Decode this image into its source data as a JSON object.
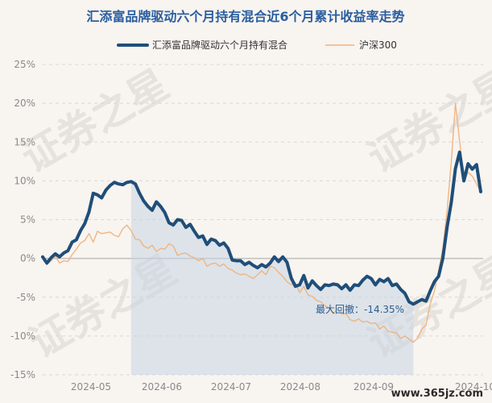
{
  "chart_data": {
    "type": "line",
    "title": "汇添富品牌驱动六个月持有混合近6个月累计收益率走势",
    "x_tick_labels": [
      "2024-05",
      "2024-06",
      "2024-07",
      "2024-08",
      "2024-09",
      "2024-10"
    ],
    "y_tick_labels": [
      "25%",
      "20%",
      "15%",
      "10%",
      "5%",
      "0%",
      "-5%",
      "-10%",
      "-15%"
    ],
    "ylim": [
      -15,
      25
    ],
    "grid": true,
    "legend_position": "top-center",
    "annotation": "最大回撤：-14.35%",
    "series": [
      {
        "name": "汇添富品牌驱动六个月持有混合",
        "color": "#1f4e79",
        "values": [
          0.2,
          -0.6,
          0.1,
          0.6,
          0.2,
          0.7,
          1.0,
          2.1,
          2.4,
          3.6,
          4.5,
          6.0,
          8.4,
          8.2,
          7.8,
          8.8,
          9.4,
          9.8,
          9.6,
          9.5,
          9.8,
          9.9,
          9.6,
          8.4,
          7.4,
          6.7,
          6.2,
          7.3,
          6.7,
          5.9,
          4.6,
          4.3,
          5.0,
          4.9,
          4.0,
          4.4,
          3.5,
          2.7,
          2.9,
          1.8,
          2.5,
          2.3,
          1.7,
          2.0,
          1.3,
          -0.2,
          -0.3,
          -0.3,
          -0.8,
          -0.5,
          -0.9,
          -1.2,
          -0.8,
          -1.1,
          -0.6,
          0.2,
          -0.4,
          0.2,
          -0.5,
          -2.5,
          -3.6,
          -3.4,
          -2.2,
          -3.8,
          -2.9,
          -3.5,
          -4.0,
          -3.4,
          -3.5,
          -3.3,
          -3.4,
          -3.9,
          -3.4,
          -4.1,
          -3.4,
          -3.5,
          -2.8,
          -2.3,
          -2.6,
          -3.4,
          -2.7,
          -3.0,
          -2.6,
          -3.5,
          -3.3,
          -4.0,
          -4.5,
          -5.6,
          -5.9,
          -5.6,
          -5.3,
          -5.5,
          -4.2,
          -3.0,
          -2.3,
          0.0,
          4.0,
          7.2,
          11.6,
          13.7,
          10.0,
          12.2,
          11.5,
          12.1,
          8.6
        ]
      },
      {
        "name": "沪深300",
        "color": "#f0b27a",
        "values": [
          0.0,
          -0.8,
          -0.3,
          0.3,
          -0.6,
          -0.3,
          -0.4,
          0.5,
          1.2,
          2.0,
          2.3,
          3.2,
          2.1,
          3.5,
          3.2,
          3.3,
          3.4,
          3.0,
          2.8,
          3.8,
          4.3,
          3.6,
          2.5,
          2.4,
          1.6,
          1.3,
          1.7,
          0.9,
          1.3,
          1.2,
          1.9,
          1.6,
          0.4,
          0.6,
          0.7,
          0.3,
          0.1,
          -0.3,
          0.0,
          -1.0,
          -0.7,
          -0.6,
          -1.0,
          -0.7,
          -1.3,
          -1.5,
          -1.9,
          -2.1,
          -2.0,
          -2.3,
          -2.6,
          -2.1,
          -1.6,
          -2.1,
          -1.0,
          -1.2,
          -1.8,
          -2.3,
          -3.0,
          -3.4,
          -3.1,
          -4.4,
          -3.6,
          -4.7,
          -4.9,
          -5.4,
          -5.6,
          -6.1,
          -6.4,
          -7.1,
          -6.5,
          -7.2,
          -7.1,
          -7.9,
          -8.1,
          -7.8,
          -8.2,
          -8.1,
          -8.4,
          -8.3,
          -9.1,
          -8.7,
          -9.4,
          -9.5,
          -9.6,
          -10.3,
          -10.0,
          -10.4,
          -10.8,
          -10.3,
          -9.1,
          -8.6,
          -5.9,
          -4.2,
          -1.6,
          1.3,
          6.1,
          12.4,
          20.0,
          15.1,
          9.9,
          11.1,
          10.6,
          9.6,
          8.6
        ]
      }
    ]
  },
  "watermark": {
    "text": "证券之星"
  },
  "site": {
    "label": "www.365jz.com"
  }
}
